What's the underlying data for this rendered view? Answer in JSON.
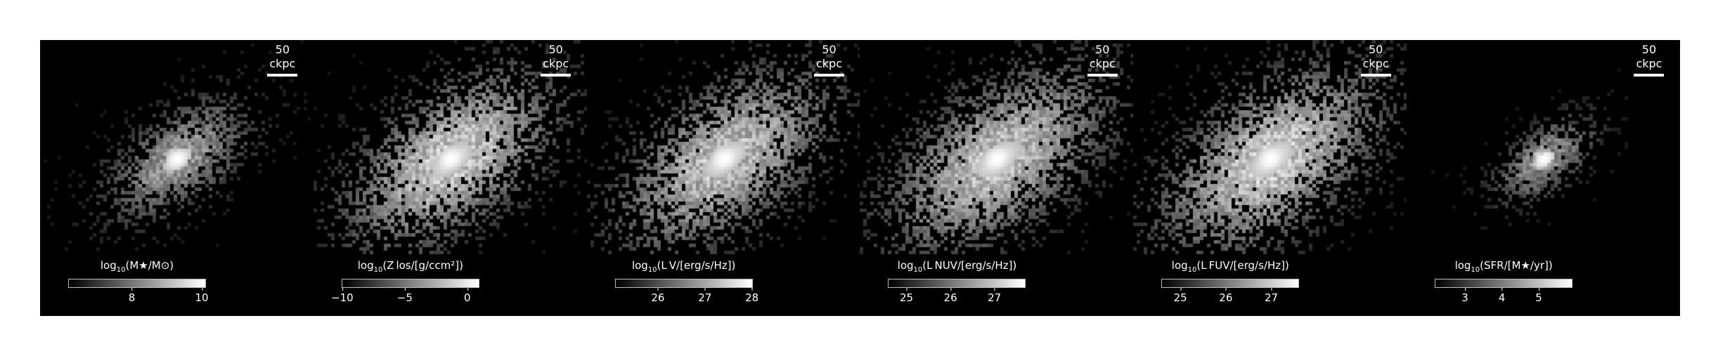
{
  "panels": [
    {
      "scale_label": "50 ckpc",
      "cbar_label": {
        "pre": "log",
        "sub": "10",
        "post": "(M★/M⊙)"
      },
      "ticks": [
        "8",
        "10"
      ],
      "tick_values": [
        8,
        10
      ],
      "cbar_range": [
        6.2,
        10.1
      ]
    },
    {
      "scale_label": "50 ckpc",
      "cbar_label": {
        "pre": "log",
        "sub": "10",
        "post": "(Z los/[g/ccm²])"
      },
      "ticks": [
        "−10",
        "−5",
        "0"
      ],
      "tick_values": [
        -10,
        -5,
        0
      ],
      "cbar_range": [
        -10,
        0.9
      ]
    },
    {
      "scale_label": "50 ckpc",
      "cbar_label": {
        "pre": "log",
        "sub": "10",
        "post": "(L V/[erg/s/Hz])"
      },
      "ticks": [
        "26",
        "27",
        "28"
      ],
      "tick_values": [
        26,
        27,
        28
      ],
      "cbar_range": [
        25.1,
        28
      ]
    },
    {
      "scale_label": "50 ckpc",
      "cbar_label": {
        "pre": "log",
        "sub": "10",
        "post": "(L NUV/[erg/s/Hz])"
      },
      "ticks": [
        "25",
        "26",
        "27"
      ],
      "tick_values": [
        25,
        26,
        27
      ],
      "cbar_range": [
        24.6,
        27.7
      ]
    },
    {
      "scale_label": "50 ckpc",
      "cbar_label": {
        "pre": "log",
        "sub": "10",
        "post": "(L FUV/[erg/s/Hz])"
      },
      "ticks": [
        "25",
        "26",
        "27"
      ],
      "tick_values": [
        25,
        26,
        27
      ],
      "cbar_range": [
        24.6,
        27.6
      ]
    },
    {
      "scale_label": "50 ckpc",
      "cbar_label": {
        "pre": "log",
        "sub": "10",
        "post": "(SFR/[M★/yr])"
      },
      "ticks": [
        "3",
        "4",
        "5"
      ],
      "tick_values": [
        3,
        4,
        5
      ],
      "cbar_range": [
        2.2,
        5.9
      ]
    }
  ]
}
